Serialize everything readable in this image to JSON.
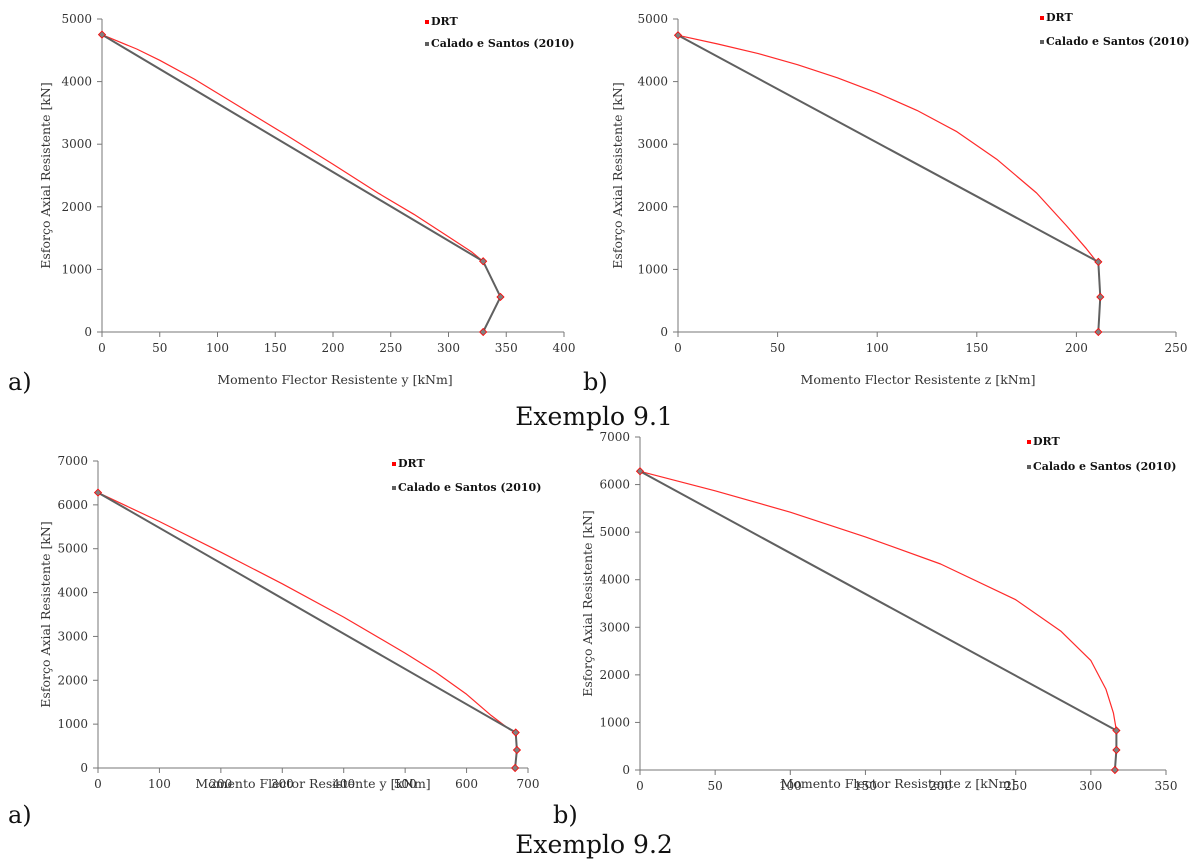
{
  "captions": [
    "Exemplo 9.1",
    "Exemplo 9.2"
  ],
  "panel_letters": [
    "a)",
    "b)",
    "a)",
    "b)"
  ],
  "colors": {
    "drt": "#ff2a2a",
    "calado": "#606060",
    "marker": "#ff0000",
    "marker_gray": "#808080"
  },
  "chart_data": [
    {
      "type": "line",
      "xlabel": "Momento Flector Resistente y [kNm]",
      "ylabel": "Esforço Axial Resistente [kN]",
      "xlim": [
        0,
        400
      ],
      "ylim": [
        0,
        5000
      ],
      "xticks": [
        "0",
        "50",
        "100",
        "150",
        "200",
        "250",
        "300",
        "350",
        "400"
      ],
      "yticks": [
        "0",
        "1000",
        "2000",
        "3000",
        "4000",
        "5000"
      ],
      "legend_position": "top-right",
      "series": [
        {
          "name": "DRT",
          "type": "curve",
          "x": [
            0,
            30,
            50,
            80,
            120,
            160,
            200,
            240,
            270,
            300,
            320,
            330,
            345,
            330
          ],
          "y": [
            4750,
            4520,
            4340,
            4040,
            3590,
            3140,
            2680,
            2210,
            1880,
            1520,
            1280,
            1130,
            560,
            0
          ]
        },
        {
          "name": "Calado e Santos (2010)",
          "type": "polyline",
          "x": [
            0,
            330,
            345,
            330
          ],
          "y": [
            4750,
            1130,
            560,
            0
          ]
        }
      ]
    },
    {
      "type": "line",
      "xlabel": "Momento  Flector Resistente z  [kNm]",
      "ylabel": "Esforço Axial Resistente [kN]",
      "xlim": [
        0,
        250
      ],
      "ylim": [
        0,
        5000
      ],
      "xticks": [
        "0",
        "50",
        "100",
        "150",
        "200",
        "250"
      ],
      "yticks": [
        "0",
        "1000",
        "2000",
        "3000",
        "4000",
        "5000"
      ],
      "legend_position": "top-right",
      "series": [
        {
          "name": "DRT",
          "type": "curve",
          "x": [
            0,
            20,
            40,
            60,
            80,
            100,
            120,
            140,
            160,
            180,
            195,
            205,
            210,
            211,
            212,
            211
          ],
          "y": [
            4740,
            4600,
            4450,
            4270,
            4060,
            3820,
            3540,
            3200,
            2760,
            2220,
            1700,
            1330,
            1130,
            1120,
            560,
            0
          ]
        },
        {
          "name": "Calado e Santos (2010)",
          "type": "polyline",
          "x": [
            0,
            211,
            212,
            211
          ],
          "y": [
            4740,
            1120,
            560,
            0
          ]
        }
      ]
    },
    {
      "type": "line",
      "xlabel": "Momento Flector Resistente y  [kNm]",
      "ylabel": "Esforço Axial Resistente [kN]",
      "xlim": [
        0,
        700
      ],
      "ylim": [
        0,
        7000
      ],
      "xticks": [
        "0",
        "100",
        "200",
        "300",
        "400",
        "500",
        "600",
        "700"
      ],
      "yticks": [
        "0",
        "1000",
        "2000",
        "3000",
        "4000",
        "5000",
        "6000",
        "7000"
      ],
      "legend_position": "top-right",
      "series": [
        {
          "name": "DRT",
          "type": "curve",
          "x": [
            0,
            100,
            200,
            300,
            400,
            500,
            550,
            600,
            640,
            670,
            680,
            682,
            679
          ],
          "y": [
            6280,
            5620,
            4920,
            4200,
            3440,
            2620,
            2180,
            1680,
            1200,
            880,
            810,
            410,
            0
          ]
        },
        {
          "name": "Calado e Santos (2010)",
          "type": "polyline",
          "x": [
            0,
            680,
            682,
            679
          ],
          "y": [
            6280,
            810,
            410,
            0
          ]
        }
      ]
    },
    {
      "type": "line",
      "xlabel": "Momento Flector Resistente z  [kNm]",
      "ylabel": "Esforço Axial Resistente [kN]",
      "xlim": [
        0,
        350
      ],
      "ylim": [
        0,
        7000
      ],
      "xticks": [
        "0",
        "50",
        "100",
        "150",
        "200",
        "250",
        "300",
        "350"
      ],
      "yticks": [
        "0",
        "1000",
        "2000",
        "3000",
        "4000",
        "5000",
        "6000",
        "7000"
      ],
      "legend_position": "top-right",
      "series": [
        {
          "name": "DRT",
          "type": "curve",
          "x": [
            0,
            50,
            100,
            150,
            200,
            250,
            280,
            300,
            310,
            315,
            317,
            317,
            316
          ],
          "y": [
            6280,
            5870,
            5420,
            4900,
            4330,
            3580,
            2920,
            2300,
            1700,
            1200,
            830,
            420,
            0
          ]
        },
        {
          "name": "Calado e Santos (2010)",
          "type": "polyline",
          "x": [
            0,
            317,
            317,
            316
          ],
          "y": [
            6280,
            830,
            420,
            0
          ]
        }
      ]
    }
  ]
}
